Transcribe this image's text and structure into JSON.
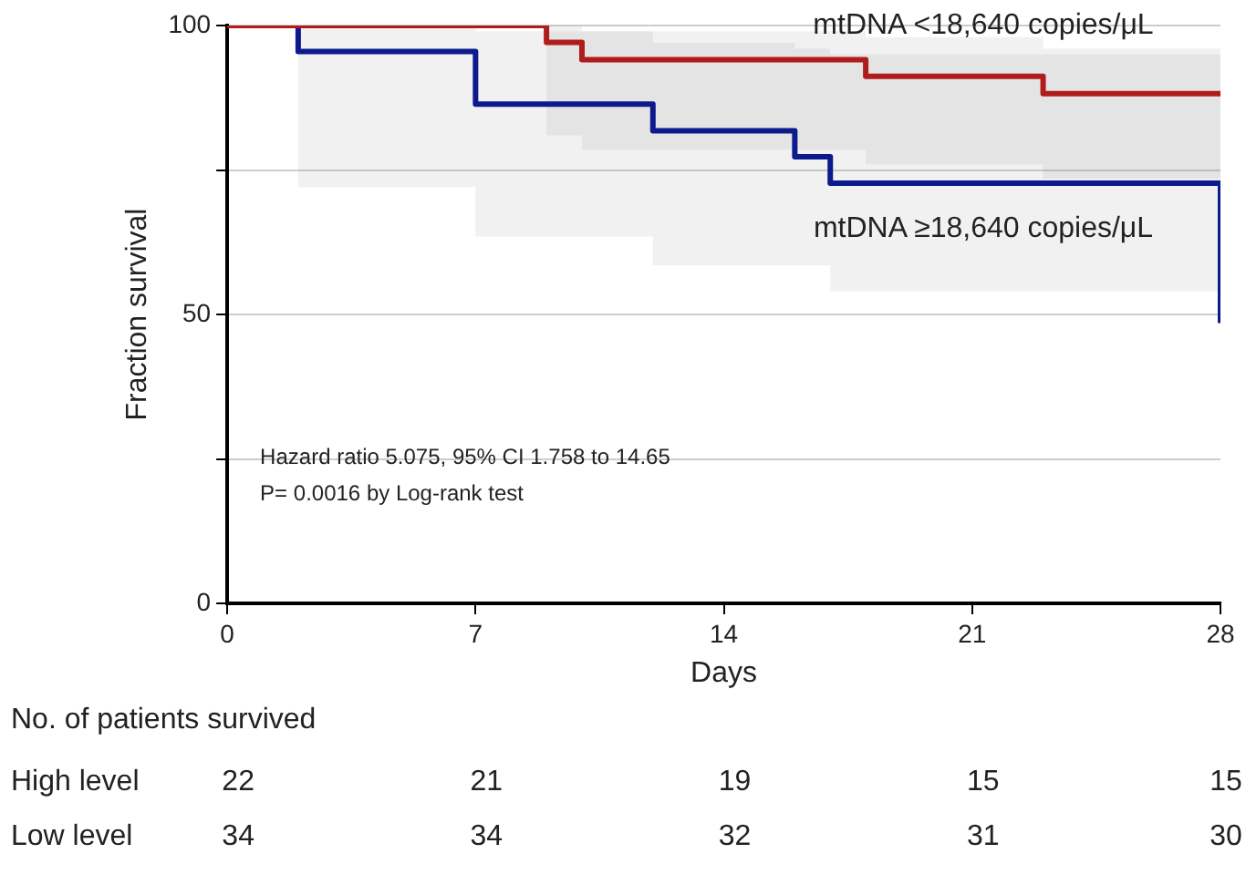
{
  "chart_data": {
    "type": "step",
    "xlabel": "Days",
    "ylabel": "Fraction survival",
    "xlim": [
      0,
      28
    ],
    "xticks": [
      0,
      7,
      14,
      21,
      28
    ],
    "ylim": [
      0,
      100
    ],
    "yticks": [
      0,
      {
        "value": 25,
        "label": null
      },
      50,
      {
        "value": 75,
        "label": null
      },
      100
    ],
    "grid": "y",
    "legend": false,
    "line_style": "solid",
    "marker": "none",
    "series": [
      {
        "name": "mtDNA <18,640 copies/μL",
        "color": "#b01c1c",
        "x": [
          0,
          9,
          10,
          18,
          23,
          28
        ],
        "values": [
          100,
          97.1,
          94.1,
          91.2,
          88.2,
          88.2
        ],
        "lower": [
          100,
          81,
          78.5,
          76,
          73.5,
          73.5
        ],
        "upper": [
          100,
          100,
          99,
          98,
          96,
          96
        ]
      },
      {
        "name": "mtDNA ≥18,640 copies/μL",
        "color": "#0c1a8c",
        "x": [
          0,
          2,
          7,
          12,
          16,
          17,
          28
        ],
        "values": [
          100,
          95.5,
          86.4,
          81.8,
          77.3,
          72.7,
          48.5
        ],
        "lower": [
          100,
          72,
          63.5,
          58.5,
          58.5,
          54,
          54
        ],
        "upper": [
          100,
          100,
          99,
          97,
          96,
          95,
          95
        ]
      }
    ],
    "annotations": [
      "Hazard ratio 5.075, 95% CI 1.758 to 14.65",
      "P= 0.0016 by Log-rank test",
      "No. of patients survived",
      "High level",
      "22",
      "21",
      "19",
      "15",
      "15",
      "Low level",
      "34",
      "34",
      "32",
      "31",
      "30"
    ]
  }
}
